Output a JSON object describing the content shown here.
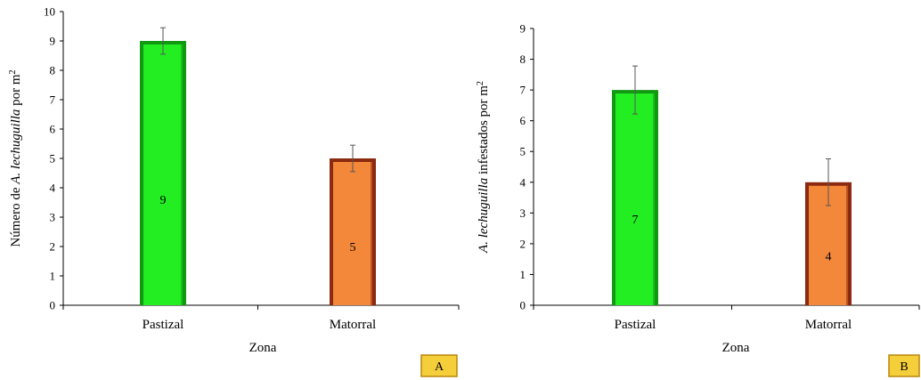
{
  "colors": {
    "green_fill": "#22ee22",
    "green_shade": "#119911",
    "orange_fill": "#f4883a",
    "orange_shade": "#8b2a10",
    "badge_fill": "#f5cf3a",
    "badge_border": "#b8860b",
    "axis": "#000000"
  },
  "chart_data": [
    {
      "type": "bar",
      "panel_label": "A",
      "categories": [
        "Pastizal",
        "Matorral"
      ],
      "values": [
        9,
        5
      ],
      "error": [
        0.45,
        0.45
      ],
      "bar_value_labels": [
        "9",
        "5"
      ],
      "bar_colors": [
        "green",
        "orange"
      ],
      "xlabel": "Zona",
      "ylabel_parts": [
        {
          "text": "Número de ",
          "italic": false
        },
        {
          "text": "A. lechuguilla",
          "italic": true
        },
        {
          "text": " por m",
          "italic": false
        },
        {
          "text": "2",
          "italic": false,
          "sup": true
        }
      ],
      "ylim": [
        0,
        10
      ],
      "yticks": [
        "0",
        "1",
        "2",
        "3",
        "4",
        "5",
        "6",
        "7",
        "8",
        "9",
        "10"
      ],
      "grid": false,
      "legend": "none"
    },
    {
      "type": "bar",
      "panel_label": "B",
      "categories": [
        "Pastizal",
        "Matorral"
      ],
      "values": [
        7,
        4
      ],
      "error": [
        0.78,
        0.76
      ],
      "bar_value_labels": [
        "7",
        "4"
      ],
      "bar_colors": [
        "green",
        "orange"
      ],
      "xlabel": "Zona",
      "ylabel_parts": [
        {
          "text": "A. lechuguilla",
          "italic": true
        },
        {
          "text": " infestados por m",
          "italic": false
        },
        {
          "text": "2",
          "italic": false,
          "sup": true
        }
      ],
      "ylim": [
        0,
        9
      ],
      "yticks": [
        "0",
        "1",
        "2",
        "3",
        "4",
        "5",
        "6",
        "7",
        "8",
        "9"
      ],
      "grid": false,
      "legend": "none"
    }
  ]
}
